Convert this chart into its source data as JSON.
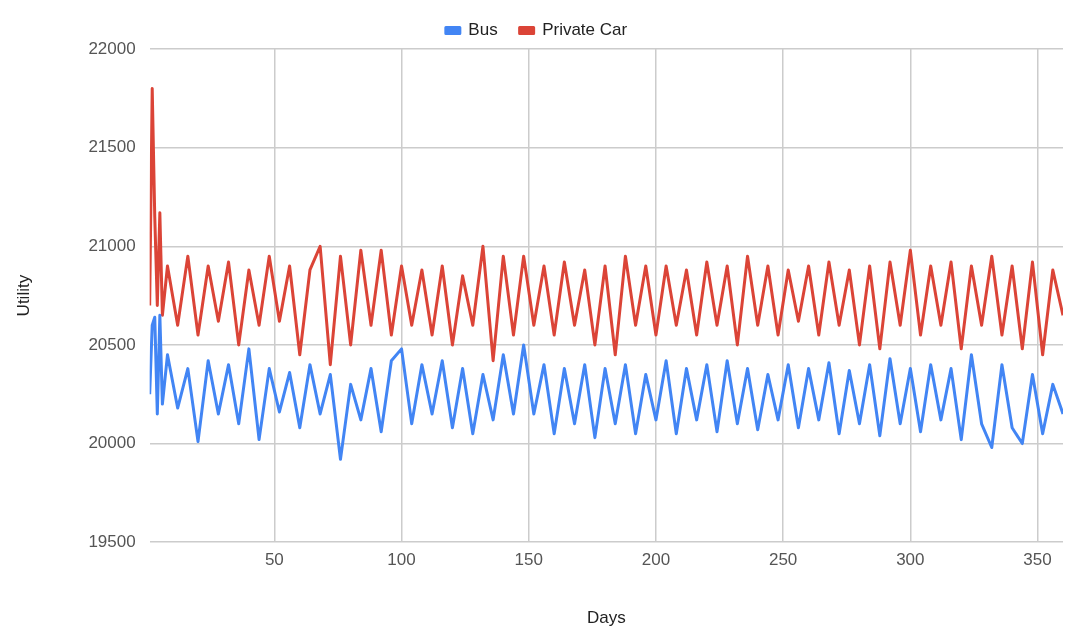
{
  "chart_data": {
    "type": "line",
    "xlabel": "Days",
    "ylabel": "Utility",
    "legend": "top",
    "grid": true,
    "marker": "none",
    "line_style": "solid",
    "xlim": [
      1,
      360
    ],
    "xticks": [
      50,
      100,
      150,
      200,
      250,
      300,
      350
    ],
    "ylim": [
      19500,
      22000
    ],
    "yticks": [
      19500,
      20000,
      20500,
      21000,
      21500,
      22000
    ],
    "x": [
      1,
      2,
      3,
      4,
      5,
      6,
      8,
      12,
      16,
      20,
      24,
      28,
      32,
      36,
      40,
      44,
      48,
      52,
      56,
      60,
      64,
      68,
      72,
      76,
      80,
      84,
      88,
      92,
      96,
      100,
      104,
      108,
      112,
      116,
      120,
      124,
      128,
      132,
      136,
      140,
      144,
      148,
      152,
      156,
      160,
      164,
      168,
      172,
      176,
      180,
      184,
      188,
      192,
      196,
      200,
      204,
      208,
      212,
      216,
      220,
      224,
      228,
      232,
      236,
      240,
      244,
      248,
      252,
      256,
      260,
      264,
      268,
      272,
      276,
      280,
      284,
      288,
      292,
      296,
      300,
      304,
      308,
      312,
      316,
      320,
      324,
      328,
      332,
      336,
      340,
      344,
      348,
      352,
      356,
      360
    ],
    "series": [
      {
        "name": "Bus",
        "color": "#4285f4",
        "values": [
          20250,
          20600,
          20640,
          20150,
          20650,
          20200,
          20450,
          20180,
          20380,
          20010,
          20420,
          20150,
          20400,
          20100,
          20480,
          20020,
          20380,
          20160,
          20360,
          20080,
          20400,
          20150,
          20350,
          19920,
          20300,
          20120,
          20380,
          20060,
          20420,
          20480,
          20100,
          20400,
          20150,
          20420,
          20080,
          20380,
          20050,
          20350,
          20120,
          20450,
          20150,
          20500,
          20150,
          20400,
          20050,
          20380,
          20100,
          20400,
          20030,
          20380,
          20100,
          20400,
          20050,
          20350,
          20120,
          20420,
          20050,
          20380,
          20120,
          20400,
          20060,
          20420,
          20100,
          20380,
          20070,
          20350,
          20120,
          20400,
          20080,
          20380,
          20120,
          20410,
          20050,
          20370,
          20100,
          20400,
          20040,
          20430,
          20100,
          20380,
          20060,
          20400,
          20120,
          20380,
          20020,
          20450,
          20100,
          19980,
          20400,
          20080,
          20000,
          20350,
          20050,
          20300,
          20150
        ]
      },
      {
        "name": "Private Car",
        "color": "#db4437",
        "values": [
          20700,
          21800,
          21150,
          20700,
          21170,
          20650,
          20900,
          20600,
          20950,
          20550,
          20900,
          20620,
          20920,
          20500,
          20880,
          20600,
          20950,
          20620,
          20900,
          20450,
          20880,
          21000,
          20400,
          20950,
          20500,
          20980,
          20600,
          20980,
          20550,
          20900,
          20600,
          20880,
          20550,
          20900,
          20500,
          20850,
          20600,
          21000,
          20420,
          20950,
          20550,
          20950,
          20600,
          20900,
          20550,
          20920,
          20600,
          20880,
          20500,
          20900,
          20450,
          20950,
          20600,
          20900,
          20550,
          20900,
          20600,
          20880,
          20550,
          20920,
          20600,
          20900,
          20500,
          20950,
          20600,
          20900,
          20550,
          20880,
          20620,
          20900,
          20550,
          20920,
          20600,
          20880,
          20500,
          20900,
          20480,
          20920,
          20600,
          20980,
          20550,
          20900,
          20600,
          20920,
          20480,
          20900,
          20600,
          20950,
          20550,
          20900,
          20480,
          20920,
          20450,
          20880,
          20650
        ]
      }
    ]
  }
}
